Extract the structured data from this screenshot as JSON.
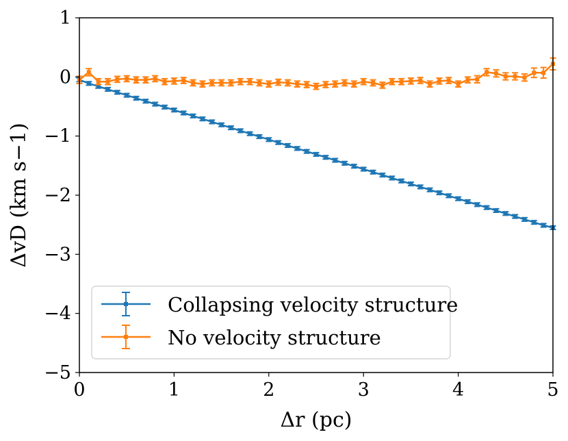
{
  "chart_data": {
    "type": "line",
    "title": "",
    "xlabel": "Δr (pc)",
    "ylabel": "ΔvD (km s−1)",
    "xlim": [
      0,
      5
    ],
    "ylim": [
      -5,
      1
    ],
    "xticks": [
      0,
      1,
      2,
      3,
      4,
      5
    ],
    "yticks": [
      1,
      0,
      -1,
      -2,
      -3,
      -4,
      -5
    ],
    "xtick_labels": [
      "0",
      "1",
      "2",
      "3",
      "4",
      "5"
    ],
    "ytick_labels": [
      "1",
      "0",
      "−1",
      "−2",
      "−3",
      "−4",
      "−5"
    ],
    "grid": false,
    "legend_position": "bottom-left",
    "x": [
      0,
      0.1,
      0.2,
      0.3,
      0.4,
      0.5,
      0.6,
      0.7,
      0.8,
      0.9,
      1.0,
      1.1,
      1.2,
      1.3,
      1.4,
      1.5,
      1.6,
      1.7,
      1.8,
      1.9,
      2.0,
      2.1,
      2.2,
      2.3,
      2.4,
      2.5,
      2.6,
      2.7,
      2.8,
      2.9,
      3.0,
      3.1,
      3.2,
      3.3,
      3.4,
      3.5,
      3.6,
      3.7,
      3.8,
      3.9,
      4.0,
      4.1,
      4.2,
      4.3,
      4.4,
      4.5,
      4.6,
      4.7,
      4.8,
      4.9,
      5.0
    ],
    "series": [
      {
        "name": "Collapsing velocity structure",
        "color": "#1f77b4",
        "values": [
          -0.05,
          -0.11,
          -0.16,
          -0.21,
          -0.26,
          -0.31,
          -0.36,
          -0.41,
          -0.46,
          -0.51,
          -0.56,
          -0.61,
          -0.66,
          -0.71,
          -0.76,
          -0.81,
          -0.86,
          -0.91,
          -0.96,
          -1.01,
          -1.06,
          -1.11,
          -1.16,
          -1.21,
          -1.26,
          -1.31,
          -1.36,
          -1.41,
          -1.46,
          -1.51,
          -1.56,
          -1.61,
          -1.66,
          -1.71,
          -1.76,
          -1.81,
          -1.86,
          -1.91,
          -1.96,
          -2.01,
          -2.06,
          -2.11,
          -2.16,
          -2.21,
          -2.26,
          -2.31,
          -2.36,
          -2.41,
          -2.46,
          -2.51,
          -2.55
        ],
        "errors": [
          0.03,
          0.03,
          0.03,
          0.03,
          0.03,
          0.03,
          0.03,
          0.03,
          0.03,
          0.03,
          0.03,
          0.03,
          0.03,
          0.03,
          0.03,
          0.03,
          0.03,
          0.03,
          0.03,
          0.03,
          0.03,
          0.03,
          0.03,
          0.03,
          0.03,
          0.03,
          0.03,
          0.03,
          0.03,
          0.03,
          0.03,
          0.03,
          0.03,
          0.03,
          0.03,
          0.03,
          0.03,
          0.03,
          0.03,
          0.03,
          0.03,
          0.03,
          0.03,
          0.03,
          0.03,
          0.03,
          0.03,
          0.03,
          0.03,
          0.03,
          0.03
        ]
      },
      {
        "name": "No velocity structure",
        "color": "#ff7f0e",
        "values": [
          -0.05,
          0.08,
          -0.08,
          -0.08,
          -0.04,
          -0.03,
          -0.05,
          -0.05,
          -0.03,
          -0.08,
          -0.07,
          -0.06,
          -0.1,
          -0.12,
          -0.1,
          -0.1,
          -0.1,
          -0.08,
          -0.08,
          -0.1,
          -0.12,
          -0.09,
          -0.1,
          -0.12,
          -0.13,
          -0.16,
          -0.13,
          -0.12,
          -0.1,
          -0.12,
          -0.08,
          -0.1,
          -0.14,
          -0.08,
          -0.08,
          -0.07,
          -0.06,
          -0.12,
          -0.07,
          -0.06,
          -0.12,
          -0.05,
          -0.04,
          0.08,
          0.06,
          0.01,
          0.01,
          -0.01,
          0.07,
          0.07,
          0.22
        ],
        "errors": [
          0.06,
          0.06,
          0.05,
          0.05,
          0.05,
          0.05,
          0.05,
          0.05,
          0.05,
          0.05,
          0.05,
          0.05,
          0.05,
          0.05,
          0.05,
          0.05,
          0.05,
          0.05,
          0.05,
          0.05,
          0.05,
          0.05,
          0.05,
          0.05,
          0.05,
          0.05,
          0.05,
          0.05,
          0.05,
          0.05,
          0.05,
          0.05,
          0.05,
          0.05,
          0.05,
          0.05,
          0.05,
          0.05,
          0.05,
          0.05,
          0.05,
          0.05,
          0.06,
          0.06,
          0.06,
          0.06,
          0.06,
          0.06,
          0.08,
          0.09,
          0.1
        ]
      }
    ]
  }
}
